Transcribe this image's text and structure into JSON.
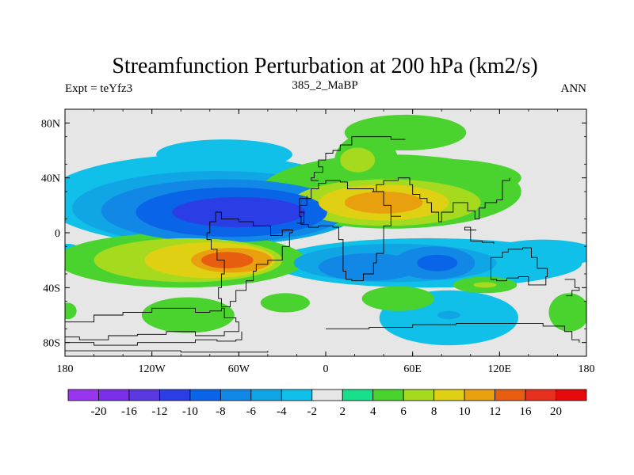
{
  "chart_data": {
    "type": "heatmap",
    "title": "Streamfunction Perturbation at 200 hPa (km2/s)",
    "left_label": "Expt = teYfz3",
    "center_label": "385_2_MaBP",
    "right_label": "ANN",
    "x_ticks": [
      {
        "value": -180,
        "label": "180"
      },
      {
        "value": -120,
        "label": "120W"
      },
      {
        "value": -60,
        "label": "60W"
      },
      {
        "value": 0,
        "label": "0"
      },
      {
        "value": 60,
        "label": "60E"
      },
      {
        "value": 120,
        "label": "120E"
      },
      {
        "value": 180,
        "label": "180"
      }
    ],
    "y_ticks": [
      {
        "value": 80,
        "label": "80N"
      },
      {
        "value": 40,
        "label": "40N"
      },
      {
        "value": 0,
        "label": "0"
      },
      {
        "value": -40,
        "label": "40S"
      },
      {
        "value": -80,
        "label": "80S"
      }
    ],
    "xlim": [
      -180,
      180
    ],
    "ylim": [
      -90,
      90
    ],
    "background_color": "#e6e6e6",
    "colorbar": {
      "levels": [
        "-20",
        "-16",
        "-12",
        "-10",
        "-8",
        "-6",
        "-4",
        "-2",
        "2",
        "4",
        "6",
        "8",
        "10",
        "12",
        "16",
        "20"
      ],
      "colors": [
        "#9a35ee",
        "#7c2fe8",
        "#5a3ae0",
        "#2b3ee6",
        "#0a64e8",
        "#1188e6",
        "#10a6e6",
        "#10c0e8",
        "#e6e6e6",
        "#18e08a",
        "#4ad22e",
        "#a6da1e",
        "#e0d014",
        "#e8a00e",
        "#e85e10",
        "#e8301e",
        "#e60a0a"
      ]
    },
    "blobs": [
      {
        "lon": -60,
        "lat": 15,
        "rlon": 46,
        "rlat": 11,
        "level": -10
      },
      {
        "lon": -65,
        "lat": 15,
        "rlon": 66,
        "rlat": 18,
        "level": -8
      },
      {
        "lon": -70,
        "lat": 16,
        "rlon": 85,
        "rlat": 23,
        "level": -6
      },
      {
        "lon": -75,
        "lat": 18,
        "rlon": 100,
        "rlat": 27,
        "level": -4
      },
      {
        "lon": -100,
        "lat": 22,
        "rlon": 50,
        "rlat": 20,
        "level": -4
      },
      {
        "lon": -85,
        "lat": 24,
        "rlon": 110,
        "rlat": 33,
        "level": -2
      },
      {
        "lon": -70,
        "lat": 57,
        "rlon": 47,
        "rlat": 11,
        "level": -2
      },
      {
        "lon": 55,
        "lat": 73,
        "rlon": 42,
        "rlat": 13,
        "level": 4
      },
      {
        "lon": 28,
        "lat": 52,
        "rlon": 22,
        "rlat": 20,
        "level": 4
      },
      {
        "lon": 75,
        "lat": 40,
        "rlon": 60,
        "rlat": 14,
        "level": 4
      },
      {
        "lon": 45,
        "lat": 30,
        "rlon": 90,
        "rlat": 27,
        "level": 4
      },
      {
        "lon": 42,
        "lat": 22,
        "rlon": 65,
        "rlat": 17,
        "level": 6
      },
      {
        "lon": 22,
        "lat": 53,
        "rlon": 12,
        "rlat": 9,
        "level": 6
      },
      {
        "lon": 40,
        "lat": 22,
        "rlon": 45,
        "rlat": 13,
        "level": 8
      },
      {
        "lon": 40,
        "lat": 22,
        "rlon": 27,
        "rlat": 8,
        "level": 10
      },
      {
        "lon": -100,
        "lat": -20,
        "rlon": 86,
        "rlat": 20,
        "level": 4
      },
      {
        "lon": -95,
        "lat": -20,
        "rlon": 65,
        "rlat": 16,
        "level": 6
      },
      {
        "lon": -80,
        "lat": -20,
        "rlon": 45,
        "rlat": 13,
        "level": 8
      },
      {
        "lon": -65,
        "lat": -20,
        "rlon": 28,
        "rlat": 9,
        "level": 10
      },
      {
        "lon": -68,
        "lat": -20,
        "rlon": 18,
        "rlat": 6,
        "level": 12
      },
      {
        "lon": 70,
        "lat": -22,
        "rlon": 107,
        "rlat": 18,
        "level": -2
      },
      {
        "lon": 48,
        "lat": -22,
        "rlon": 70,
        "rlat": 14,
        "level": -4
      },
      {
        "lon": 30,
        "lat": -25,
        "rlon": 35,
        "rlat": 10,
        "level": -6
      },
      {
        "lon": 75,
        "lat": -22,
        "rlon": 28,
        "rlat": 12,
        "level": -6
      },
      {
        "lon": 77,
        "lat": -22,
        "rlon": 14,
        "rlat": 6,
        "level": -8
      },
      {
        "lon": 150,
        "lat": -15,
        "rlon": 38,
        "rlat": 10,
        "level": -2
      },
      {
        "lon": -178,
        "lat": -15,
        "rlon": 10,
        "rlat": 7,
        "level": -2
      },
      {
        "lon": 110,
        "lat": -38,
        "rlon": 22,
        "rlat": 6,
        "level": 4
      },
      {
        "lon": 110,
        "lat": -38,
        "rlon": 8,
        "rlat": 2,
        "level": 6
      },
      {
        "lon": 85,
        "lat": -62,
        "rlon": 48,
        "rlat": 20,
        "level": -2
      },
      {
        "lon": 85,
        "lat": -60,
        "rlon": 8,
        "rlat": 3,
        "level": -4
      },
      {
        "lon": -95,
        "lat": -60,
        "rlon": 32,
        "rlat": 13,
        "level": 4
      },
      {
        "lon": -28,
        "lat": -51,
        "rlon": 17,
        "rlat": 7,
        "level": 4
      },
      {
        "lon": 50,
        "lat": -48,
        "rlon": 25,
        "rlat": 9,
        "level": 4
      },
      {
        "lon": 168,
        "lat": -58,
        "rlon": 14,
        "rlat": 14,
        "level": 4
      },
      {
        "lon": -178,
        "lat": -57,
        "rlon": 6,
        "rlat": 6,
        "level": 4
      }
    ],
    "coastlines": [
      [
        [
          -180,
          -65
        ],
        [
          -160,
          -60
        ],
        [
          -140,
          -58
        ],
        [
          -120,
          -55
        ],
        [
          -100,
          -55
        ],
        [
          -90,
          -58
        ],
        [
          -80,
          -57
        ],
        [
          -72,
          -55
        ],
        [
          -70,
          -62
        ],
        [
          -62,
          -65
        ],
        [
          -60,
          -72
        ],
        [
          -70,
          -75
        ],
        [
          -90,
          -72
        ],
        [
          -110,
          -74
        ],
        [
          -130,
          -75
        ],
        [
          -150,
          -78
        ],
        [
          -170,
          -76
        ],
        [
          -180,
          -75
        ]
      ],
      [
        [
          -180,
          -80
        ],
        [
          -160,
          -82
        ],
        [
          -130,
          -80
        ],
        [
          -100,
          -80
        ],
        [
          -90,
          -78
        ],
        [
          -75,
          -79
        ],
        [
          -62,
          -78
        ],
        [
          -58,
          -72
        ]
      ],
      [
        [
          -180,
          -86
        ],
        [
          -100,
          -87
        ],
        [
          -40,
          -86
        ]
      ],
      [
        [
          -23,
          0
        ],
        [
          -25,
          -10
        ],
        [
          -30,
          -20
        ],
        [
          -40,
          -23
        ],
        [
          -48,
          -28
        ],
        [
          -50,
          -35
        ],
        [
          -55,
          -42
        ],
        [
          -62,
          -50
        ],
        [
          -66,
          -54
        ],
        [
          -72,
          -48
        ],
        [
          -74,
          -40
        ],
        [
          -72,
          -30
        ],
        [
          -70,
          -20
        ],
        [
          -75,
          -12
        ],
        [
          -79,
          -5
        ],
        [
          -82,
          0
        ]
      ],
      [
        [
          -82,
          0
        ],
        [
          -80,
          8
        ],
        [
          -76,
          15
        ],
        [
          -72,
          10
        ],
        [
          -60,
          8
        ],
        [
          -50,
          5
        ],
        [
          -38,
          -2
        ],
        [
          -30,
          2
        ],
        [
          -23,
          0
        ]
      ],
      [
        [
          -20,
          7
        ],
        [
          -15,
          15
        ],
        [
          -18,
          25
        ],
        [
          -10,
          32
        ],
        [
          -5,
          36
        ],
        [
          0,
          38
        ],
        [
          10,
          37
        ],
        [
          15,
          32
        ],
        [
          25,
          32
        ],
        [
          33,
          30
        ],
        [
          40,
          20
        ],
        [
          45,
          12
        ],
        [
          52,
          12
        ],
        [
          45,
          5
        ],
        [
          40,
          -5
        ],
        [
          40,
          -15
        ],
        [
          35,
          -22
        ],
        [
          33,
          -30
        ],
        [
          26,
          -35
        ],
        [
          18,
          -34
        ],
        [
          14,
          -28
        ],
        [
          12,
          -18
        ],
        [
          12,
          -5
        ],
        [
          9,
          4
        ],
        [
          5,
          5
        ],
        [
          -5,
          4
        ],
        [
          -12,
          6
        ],
        [
          -17,
          12
        ],
        [
          -18,
          20
        ],
        [
          -13,
          27
        ]
      ],
      [
        [
          -5,
          38
        ],
        [
          -10,
          40
        ],
        [
          -8,
          44
        ],
        [
          -2,
          48
        ],
        [
          -5,
          53
        ],
        [
          0,
          58
        ],
        [
          5,
          60
        ],
        [
          10,
          64
        ],
        [
          18,
          70
        ],
        [
          30,
          70
        ],
        [
          45,
          68
        ],
        [
          55,
          68
        ]
      ],
      [
        [
          32,
          30
        ],
        [
          35,
          35
        ],
        [
          40,
          38
        ],
        [
          50,
          40
        ],
        [
          58,
          35
        ],
        [
          60,
          28
        ],
        [
          65,
          25
        ],
        [
          70,
          22
        ],
        [
          73,
          15
        ],
        [
          78,
          8
        ],
        [
          80,
          15
        ],
        [
          88,
          22
        ],
        [
          92,
          22
        ],
        [
          98,
          16
        ],
        [
          103,
          10
        ],
        [
          106,
          18
        ],
        [
          110,
          22
        ],
        [
          118,
          24
        ],
        [
          122,
          30
        ],
        [
          122,
          38
        ],
        [
          127,
          40
        ]
      ],
      [
        [
          104,
          2
        ],
        [
          96,
          4
        ],
        [
          100,
          -6
        ],
        [
          108,
          -7
        ],
        [
          116,
          -8
        ]
      ],
      [
        [
          114,
          -22
        ],
        [
          114,
          -34
        ],
        [
          118,
          -35
        ],
        [
          125,
          -33
        ],
        [
          133,
          -32
        ],
        [
          140,
          -38
        ],
        [
          148,
          -38
        ],
        [
          152,
          -32
        ],
        [
          153,
          -26
        ],
        [
          146,
          -18
        ],
        [
          142,
          -11
        ],
        [
          136,
          -12
        ],
        [
          130,
          -12
        ],
        [
          126,
          -14
        ],
        [
          122,
          -18
        ],
        [
          114,
          -22
        ]
      ],
      [
        [
          0,
          -70
        ],
        [
          30,
          -69
        ],
        [
          60,
          -67
        ],
        [
          90,
          -66
        ],
        [
          120,
          -66
        ],
        [
          150,
          -68
        ],
        [
          165,
          -72
        ],
        [
          170,
          -78
        ],
        [
          175,
          -80
        ]
      ],
      [
        [
          165,
          -34
        ],
        [
          172,
          -40
        ],
        [
          175,
          -42
        ],
        [
          170,
          -46
        ],
        [
          166,
          -46
        ]
      ],
      [
        [
          -180,
          -90
        ],
        [
          -180,
          -88
        ]
      ]
    ],
    "ocean_lines": [
      [
        [
          -40,
          80
        ],
        [
          -30,
          75
        ],
        [
          -20,
          70
        ],
        [
          -15,
          65
        ],
        [
          -10,
          60
        ],
        [
          -5,
          55
        ],
        [
          0,
          50
        ],
        [
          2,
          45
        ]
      ],
      [
        [
          20,
          65
        ],
        [
          25,
          60
        ],
        [
          30,
          55
        ],
        [
          28,
          50
        ],
        [
          20,
          45
        ]
      ]
    ]
  }
}
